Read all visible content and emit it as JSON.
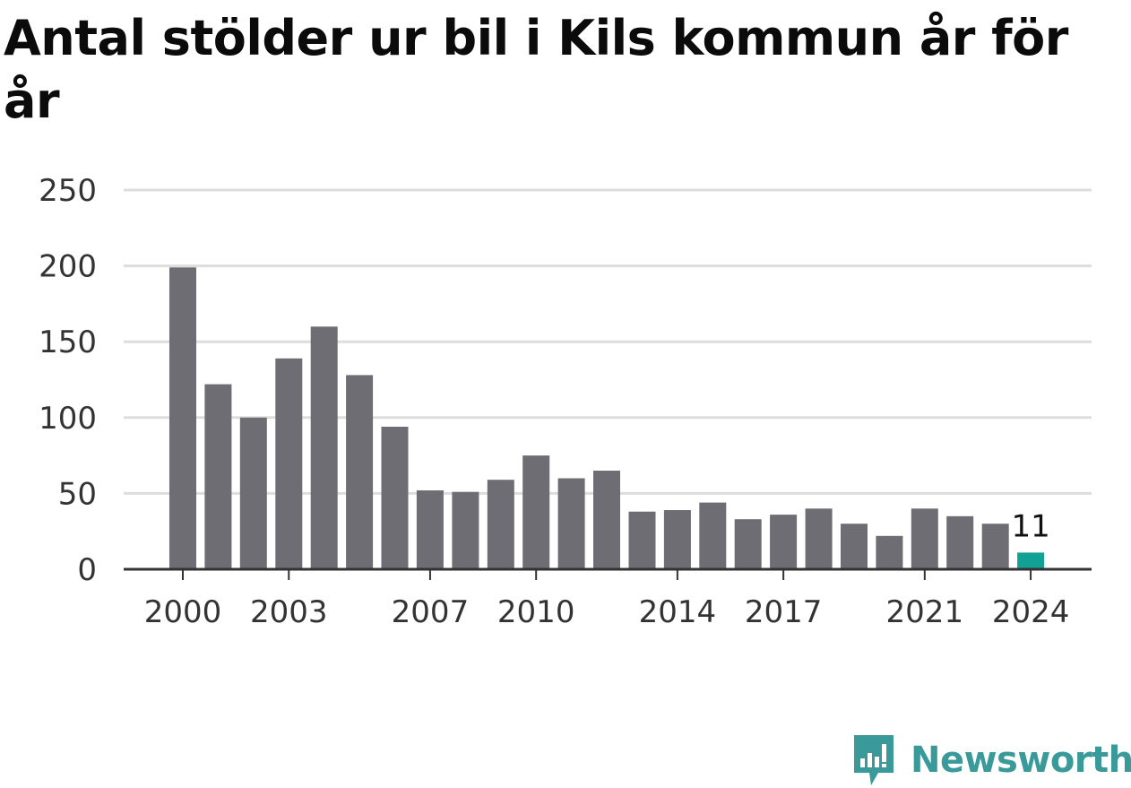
{
  "title": "Antal stölder ur bil i Kils kommun år för år",
  "brand": {
    "name": "Newsworthy",
    "icon": "newsworthy-logo-icon",
    "color": "#3a9a99"
  },
  "colors": {
    "bar": "#6e6d73",
    "highlight": "#13a095",
    "grid": "#dddddd",
    "axis": "#333333"
  },
  "chart_data": {
    "type": "bar",
    "title": "Antal stölder ur bil i Kils kommun år för år",
    "xlabel": "",
    "ylabel": "",
    "categories": [
      "2000",
      "2001",
      "2002",
      "2003",
      "2004",
      "2005",
      "2006",
      "2007",
      "2008",
      "2009",
      "2010",
      "2011",
      "2012",
      "2013",
      "2014",
      "2015",
      "2016",
      "2017",
      "2018",
      "2019",
      "2020",
      "2021",
      "2022",
      "2023",
      "2024"
    ],
    "values": [
      199,
      122,
      100,
      139,
      160,
      128,
      94,
      52,
      51,
      59,
      75,
      60,
      65,
      38,
      39,
      44,
      33,
      36,
      40,
      30,
      22,
      40,
      35,
      30,
      11
    ],
    "x_tick_labels": [
      "2000",
      "2003",
      "2007",
      "2010",
      "2014",
      "2017",
      "2021",
      "2024"
    ],
    "y_ticks": [
      0,
      50,
      100,
      150,
      200,
      250
    ],
    "ylim": [
      0,
      250
    ],
    "grid": true,
    "highlight": {
      "category": "2024",
      "label": "11"
    }
  }
}
